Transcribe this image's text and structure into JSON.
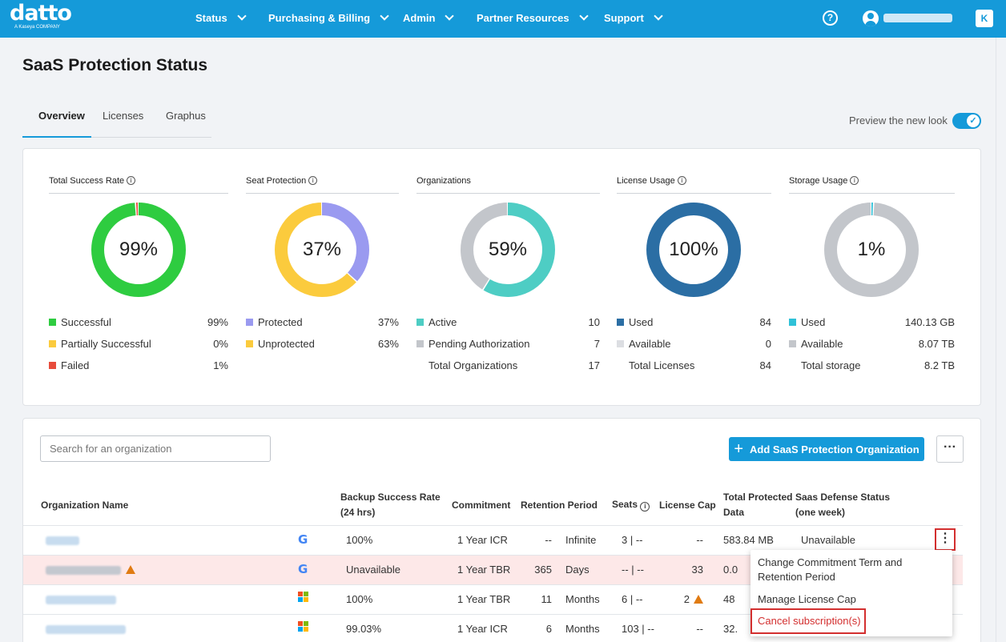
{
  "nav": {
    "logo": "datto",
    "logo_sub": "A Kaseya COMPANY",
    "items": [
      "Status",
      "Purchasing & Billing",
      "Admin",
      "Partner Resources",
      "Support"
    ],
    "help": "?",
    "badge": "K"
  },
  "page": {
    "title": "SaaS Protection Status",
    "tabs": [
      "Overview",
      "Licenses",
      "Graphus"
    ],
    "active_tab": "Overview",
    "preview_label": "Preview the new look",
    "preview_on": true
  },
  "stats": [
    {
      "title": "Total Success Rate",
      "info": true,
      "center": "99%",
      "segments": [
        {
          "frac": 0.99,
          "color": "#2ecc40"
        },
        {
          "frac": 0.01,
          "color": "#e74c3c"
        }
      ],
      "legend": [
        {
          "label": "Successful",
          "value": "99%",
          "color": "#2ecc40"
        },
        {
          "label": "Partially Successful",
          "value": "0%",
          "color": "#fbcb3d"
        },
        {
          "label": "Failed",
          "value": "1%",
          "color": "#e74c3c"
        }
      ]
    },
    {
      "title": "Seat Protection",
      "info": true,
      "center": "37%",
      "segments": [
        {
          "frac": 0.37,
          "color": "#9a9af0"
        },
        {
          "frac": 0.63,
          "color": "#fbcb3d"
        }
      ],
      "legend": [
        {
          "label": "Protected",
          "value": "37%",
          "color": "#9a9af0"
        },
        {
          "label": "Unprotected",
          "value": "63%",
          "color": "#fbcb3d"
        }
      ]
    },
    {
      "title": "Organizations",
      "info": false,
      "center": "59%",
      "segments": [
        {
          "frac": 0.59,
          "color": "#4ecdc4"
        },
        {
          "frac": 0.41,
          "color": "#c3c6cb"
        }
      ],
      "legend": [
        {
          "label": "Active",
          "value": "10",
          "color": "#4ecdc4"
        },
        {
          "label": "Pending Authorization",
          "value": "7",
          "color": "#c3c6cb"
        },
        {
          "label": "Total Organizations",
          "value": "17",
          "color": ""
        }
      ]
    },
    {
      "title": "License Usage",
      "info": true,
      "center": "100%",
      "segments": [
        {
          "frac": 1.0,
          "color": "#2b6ea4"
        }
      ],
      "legend": [
        {
          "label": "Used",
          "value": "84",
          "color": "#2b6ea4"
        },
        {
          "label": "Available",
          "value": "0",
          "color": "#dcdee2"
        },
        {
          "label": "Total Licenses",
          "value": "84",
          "color": ""
        }
      ]
    },
    {
      "title": "Storage Usage",
      "info": true,
      "center": "1%",
      "segments": [
        {
          "frac": 0.01,
          "color": "#2fc1d8"
        },
        {
          "frac": 0.99,
          "color": "#c3c6cb"
        }
      ],
      "legend": [
        {
          "label": "Used",
          "value": "140.13 GB",
          "color": "#2fc1d8"
        },
        {
          "label": "Available",
          "value": "8.07 TB",
          "color": "#c3c6cb"
        },
        {
          "label": "Total storage",
          "value": "8.2 TB",
          "color": ""
        }
      ]
    }
  ],
  "table": {
    "search_placeholder": "Search for an organization",
    "add_button": "Add SaaS Protection Organization",
    "more": "···",
    "headers": {
      "org": "Organization Name",
      "backup": "Backup Success Rate (24 hrs)",
      "commitment": "Commitment",
      "retention": "Retention Period",
      "seats": "Seats",
      "cap": "License Cap",
      "data": "Total Protected Data",
      "defense": "Saas Defense Status (one week)"
    },
    "rows": [
      {
        "platform": "google-icon",
        "backup": "100%",
        "commitment": "1 Year ICR",
        "ret_num": "--",
        "ret_unit": "Infinite",
        "seats": "3 | --",
        "cap": "--",
        "data": "583.84 MB",
        "defense": "Unavailable",
        "warn": false
      },
      {
        "platform": "google-icon",
        "backup": "Unavailable",
        "commitment": "1 Year TBR",
        "ret_num": "365",
        "ret_unit": "Days",
        "seats": "-- | --",
        "cap": "33",
        "data": "0.0",
        "defense": "",
        "warn": true
      },
      {
        "platform": "microsoft-icon",
        "backup": "100%",
        "commitment": "1 Year TBR",
        "ret_num": "11",
        "ret_unit": "Months",
        "seats": "6 | --",
        "cap": "2",
        "data": "48",
        "defense": "",
        "warn": false
      },
      {
        "platform": "microsoft-icon",
        "backup": "99.03%",
        "commitment": "1 Year ICR",
        "ret_num": "6",
        "ret_unit": "Months",
        "seats": "103 | --",
        "cap": "--",
        "data": "32.",
        "defense": "",
        "warn": false
      }
    ]
  },
  "menu": {
    "kebab": "⋮",
    "items": [
      "Change Commitment Term and Retention Period",
      "Manage License Cap",
      "Cancel subscription(s)"
    ]
  }
}
